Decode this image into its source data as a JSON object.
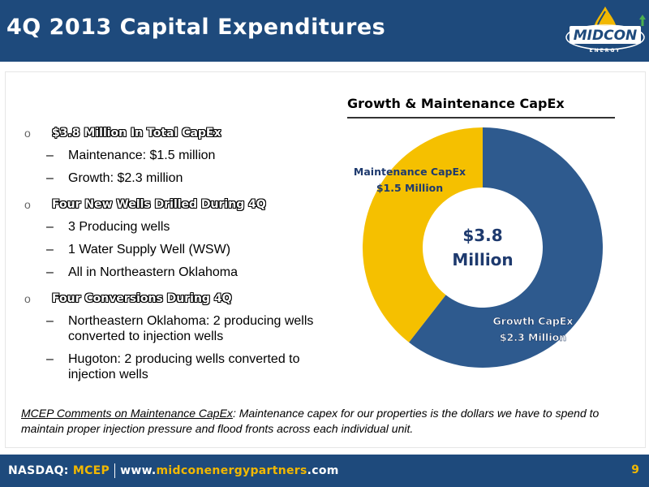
{
  "header": {
    "title": "4Q 2013 Capital Expenditures",
    "logo_text": "MIDCON",
    "logo_subtext": "ENERGY"
  },
  "bullets": [
    {
      "label": "$3.8 Million In Total CapEx",
      "sub": [
        "Maintenance: $1.5 million",
        "Growth: $2.3 million"
      ]
    },
    {
      "label": "Four New Wells Drilled During 4Q",
      "sub": [
        "3 Producing wells",
        "1 Water Supply Well (WSW)",
        "All in Northeastern Oklahoma"
      ]
    },
    {
      "label": "Four Conversions During 4Q",
      "sub": [
        "Northeastern Oklahoma: 2 producing wells converted to injection wells",
        "Hugoton: 2 producing wells converted to injection wells"
      ]
    }
  ],
  "chart_data": {
    "type": "pie",
    "title": "Growth & Maintenance CapEx",
    "center_label_line1": "$3.8",
    "center_label_line2": "Million",
    "slices": [
      {
        "name": "Growth CapEx",
        "value_label": "$2.3 Million",
        "value": 2.3,
        "color": "#2e5a8e",
        "label_color": "#ffffff"
      },
      {
        "name": "Maintenance CapEx",
        "value_label": "$1.5 Million",
        "value": 1.5,
        "color": "#f5c000",
        "label_color": "#1e3a6e"
      }
    ]
  },
  "comments": {
    "heading": "MCEP Comments on Maintenance CapEx",
    "text": ": Maintenance capex for our properties is the dollars we have to spend to maintain proper injection pressure and flood fronts across each individual unit."
  },
  "footer": {
    "exchange": "NASDAQ: ",
    "ticker": "MCEP",
    "url_prefix": "www.",
    "url_domain": "midconenergypartners",
    "url_suffix": ".com",
    "page_number": "9"
  },
  "colors": {
    "brand_blue": "#1e4a7c",
    "accent_orange": "#f2b800"
  }
}
